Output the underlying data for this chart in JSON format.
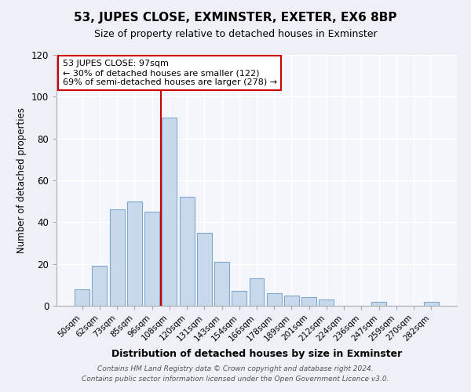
{
  "title": "53, JUPES CLOSE, EXMINSTER, EXETER, EX6 8BP",
  "subtitle": "Size of property relative to detached houses in Exminster",
  "xlabel": "Distribution of detached houses by size in Exminster",
  "ylabel": "Number of detached properties",
  "bar_labels": [
    "50sqm",
    "62sqm",
    "73sqm",
    "85sqm",
    "96sqm",
    "108sqm",
    "120sqm",
    "131sqm",
    "143sqm",
    "154sqm",
    "166sqm",
    "178sqm",
    "189sqm",
    "201sqm",
    "212sqm",
    "224sqm",
    "236sqm",
    "247sqm",
    "259sqm",
    "270sqm",
    "282sqm"
  ],
  "bar_values": [
    8,
    19,
    46,
    50,
    45,
    90,
    52,
    35,
    21,
    7,
    13,
    6,
    5,
    4,
    3,
    0,
    0,
    2,
    0,
    0,
    2
  ],
  "bar_color": "#c9d9ec",
  "bar_edge_color": "#7fa8cc",
  "vline_x_index": 4.5,
  "vline_color": "#cc0000",
  "annotation_line1": "53 JUPES CLOSE: 97sqm",
  "annotation_line2": "← 30% of detached houses are smaller (122)",
  "annotation_line3": "69% of semi-detached houses are larger (278) →",
  "annotation_box_color": "white",
  "annotation_box_edge_color": "#cc0000",
  "ylim": [
    0,
    120
  ],
  "yticks": [
    0,
    20,
    40,
    60,
    80,
    100,
    120
  ],
  "footer_line1": "Contains HM Land Registry data © Crown copyright and database right 2024.",
  "footer_line2": "Contains public sector information licensed under the Open Government Licence v3.0.",
  "bg_color": "#edf1f7",
  "plot_bg_color": "#f4f6fb"
}
